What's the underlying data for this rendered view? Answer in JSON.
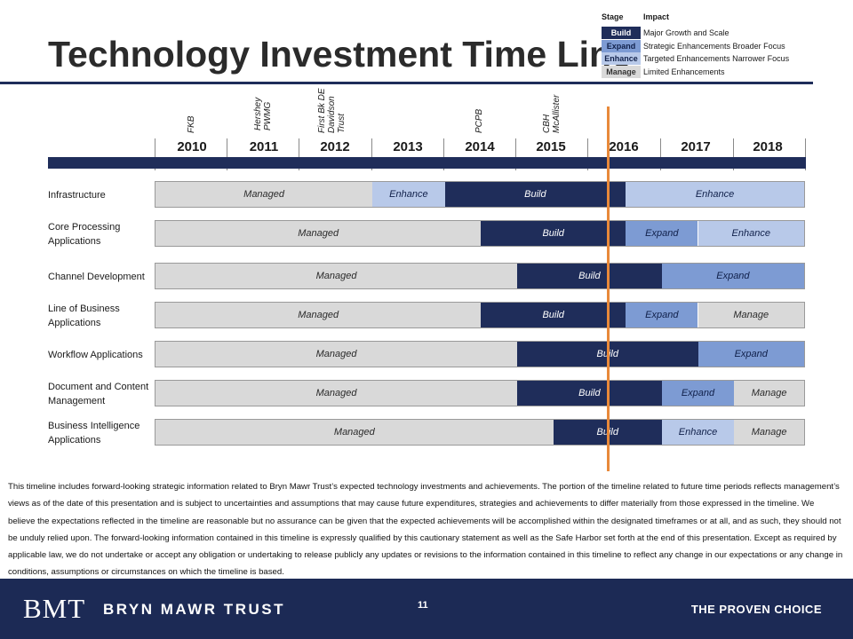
{
  "title": "Technology Investment Time Line",
  "legend": {
    "header_stage": "Stage",
    "header_impact": "Impact",
    "items": [
      {
        "stage": "Build",
        "impact": "Major Growth and Scale",
        "color": "#1f2d5a",
        "text_color": "#ffffff"
      },
      {
        "stage": "Expand",
        "impact": "Strategic Enhancements  Broader Focus",
        "color": "#7d9bd3",
        "text_color": "#10204a"
      },
      {
        "stage": "Enhance",
        "impact": "Targeted Enhancements Narrower Focus",
        "color": "#b8c9e9",
        "text_color": "#10204a"
      },
      {
        "stage": "Manage",
        "impact": "Limited Enhancements",
        "color": "#d9d9d9",
        "text_color": "#333333"
      }
    ]
  },
  "milestones": [
    "FKB",
    "Hershey\nPWMG",
    "First Bk DE\nDavidson\nTrust",
    "PCPB",
    "CBH\nMcAllister"
  ],
  "years": [
    "2010",
    "2011",
    "2012",
    "2013",
    "2014",
    "2015",
    "2016",
    "2017",
    "2018"
  ],
  "rows": [
    {
      "label": "Infrastructure",
      "segments": [
        {
          "stage": "Managed",
          "start": 2010,
          "end": 2013
        },
        {
          "stage": "Enhance",
          "start": 2013,
          "end": 2014
        },
        {
          "stage": "Build",
          "start": 2014,
          "end": 2016.5
        },
        {
          "stage": "Enhance",
          "start": 2016.5,
          "end": 2019
        }
      ]
    },
    {
      "label": "Core Processing Applications",
      "segments": [
        {
          "stage": "Managed",
          "start": 2010,
          "end": 2014.5
        },
        {
          "stage": "Build",
          "start": 2014.5,
          "end": 2016.5
        },
        {
          "stage": "Expand",
          "start": 2016.5,
          "end": 2017.5
        },
        {
          "stage": "Enhance",
          "start": 2017.5,
          "end": 2019
        }
      ]
    },
    {
      "label": "Channel Development",
      "segments": [
        {
          "stage": "Managed",
          "start": 2010,
          "end": 2015
        },
        {
          "stage": "Build",
          "start": 2015,
          "end": 2017
        },
        {
          "stage": "Expand",
          "start": 2017,
          "end": 2019
        }
      ]
    },
    {
      "label": "Line of Business Applications",
      "segments": [
        {
          "stage": "Managed",
          "start": 2010,
          "end": 2014.5
        },
        {
          "stage": "Build",
          "start": 2014.5,
          "end": 2016.5
        },
        {
          "stage": "Expand",
          "start": 2016.5,
          "end": 2017.5
        },
        {
          "stage": "Manage",
          "start": 2017.5,
          "end": 2019
        }
      ]
    },
    {
      "label": "Workflow Applications",
      "segments": [
        {
          "stage": "Managed",
          "start": 2010,
          "end": 2015
        },
        {
          "stage": "Build",
          "start": 2015,
          "end": 2017.5
        },
        {
          "stage": "Expand",
          "start": 2017.5,
          "end": 2019
        }
      ]
    },
    {
      "label": "Document and Content Management",
      "segments": [
        {
          "stage": "Managed",
          "start": 2010,
          "end": 2015
        },
        {
          "stage": "Build",
          "start": 2015,
          "end": 2017
        },
        {
          "stage": "Expand",
          "start": 2017,
          "end": 2018
        },
        {
          "stage": "Manage",
          "start": 2018,
          "end": 2019
        }
      ]
    },
    {
      "label": "Business Intelligence Applications",
      "segments": [
        {
          "stage": "Managed",
          "start": 2010,
          "end": 2015.5
        },
        {
          "stage": "Build",
          "start": 2015.5,
          "end": 2017
        },
        {
          "stage": "Enhance",
          "start": 2017,
          "end": 2018
        },
        {
          "stage": "Manage",
          "start": 2018,
          "end": 2019
        }
      ]
    }
  ],
  "disclaimer": "This timeline includes forward-looking strategic information related to Bryn Mawr Trust’s expected technology investments and achievements.  The portion of the timeline related to future time periods reflects management’s views as of the date of this presentation and is subject to uncertainties and assumptions that may cause future expenditures, strategies and achievements to differ materially from those expressed in the timeline. We believe the expectations reflected in the timeline are reasonable but no assurance can be given that the expected achievements will be accomplished within the designated timeframes or at all, and as such, they should not be unduly relied upon. The forward-looking information contained in this timeline is expressly qualified by this cautionary statement as well as the Safe Harbor set forth at the end of this presentation. Except as required by applicable law, we do not undertake or accept any obligation or undertaking to release publicly any updates or revisions to the information contained in this timeline to reflect any change in our expectations or any change in conditions, assumptions or circumstances on which the timeline is based.",
  "footer": {
    "logo_text": "BMT",
    "brand": "BRYN MAWR TRUST",
    "page_number": "11",
    "tagline": "THE PROVEN CHOICE"
  },
  "stage_colors": {
    "Managed": "#d9d9d9",
    "Manage": "#d9d9d9",
    "Enhance": "#b8c9e9",
    "Expand": "#7d9bd3",
    "Build": "#1f2d5a"
  }
}
